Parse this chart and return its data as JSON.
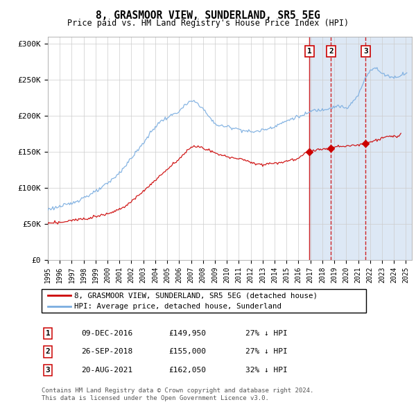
{
  "title1": "8, GRASMOOR VIEW, SUNDERLAND, SR5 5EG",
  "title2": "Price paid vs. HM Land Registry's House Price Index (HPI)",
  "ylabel_ticks": [
    "£0",
    "£50K",
    "£100K",
    "£150K",
    "£200K",
    "£250K",
    "£300K"
  ],
  "ytick_values": [
    0,
    50000,
    100000,
    150000,
    200000,
    250000,
    300000
  ],
  "ylim": [
    0,
    310000
  ],
  "xlim_start": 1995.0,
  "xlim_end": 2025.5,
  "legend_line1": "8, GRASMOOR VIEW, SUNDERLAND, SR5 5EG (detached house)",
  "legend_line2": "HPI: Average price, detached house, Sunderland",
  "line1_color": "#cc0000",
  "line2_color": "#7aade0",
  "transaction_labels": [
    "1",
    "2",
    "3"
  ],
  "transaction_dates": [
    2016.93,
    2018.73,
    2021.63
  ],
  "transaction_prices": [
    149950,
    155000,
    162050
  ],
  "transaction_date_str": [
    "09-DEC-2016",
    "26-SEP-2018",
    "20-AUG-2021"
  ],
  "transaction_price_str": [
    "£149,950",
    "£155,000",
    "£162,050"
  ],
  "transaction_hpi_str": [
    "27% ↓ HPI",
    "27% ↓ HPI",
    "32% ↓ HPI"
  ],
  "footer1": "Contains HM Land Registry data © Crown copyright and database right 2024.",
  "footer2": "This data is licensed under the Open Government Licence v3.0.",
  "bg_shade_color": "#dde8f5",
  "xlabel_years": [
    1995,
    1996,
    1997,
    1998,
    1999,
    2000,
    2001,
    2002,
    2003,
    2004,
    2005,
    2006,
    2007,
    2008,
    2009,
    2010,
    2011,
    2012,
    2013,
    2014,
    2015,
    2016,
    2017,
    2018,
    2019,
    2020,
    2021,
    2022,
    2023,
    2024,
    2025
  ]
}
